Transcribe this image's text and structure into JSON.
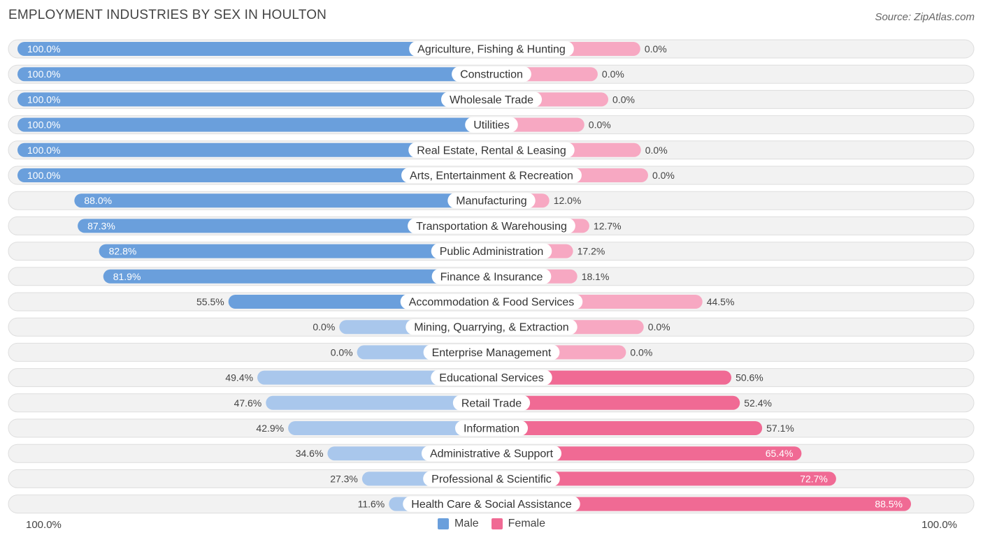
{
  "header": {
    "title": "EMPLOYMENT INDUSTRIES BY SEX IN HOULTON",
    "source": "Source: ZipAtlas.com"
  },
  "axis": {
    "left_label": "100.0%",
    "right_label": "100.0%"
  },
  "legend": {
    "male_label": "Male",
    "female_label": "Female"
  },
  "colors": {
    "male_strong": "#6a9fdc",
    "male_light": "#a9c7ec",
    "female_strong": "#f06a94",
    "female_light": "#f7a8c2"
  },
  "chart_data": {
    "type": "bar",
    "orientation": "horizontal-diverging",
    "title": "EMPLOYMENT INDUSTRIES BY SEX IN HOULTON",
    "xlim": [
      -100,
      100
    ],
    "categories": [
      "Agriculture, Fishing & Hunting",
      "Construction",
      "Wholesale Trade",
      "Utilities",
      "Real Estate, Rental & Leasing",
      "Arts, Entertainment & Recreation",
      "Manufacturing",
      "Transportation & Warehousing",
      "Public Administration",
      "Finance & Insurance",
      "Accommodation & Food Services",
      "Mining, Quarrying, & Extraction",
      "Enterprise Management",
      "Educational Services",
      "Retail Trade",
      "Information",
      "Administrative & Support",
      "Professional & Scientific",
      "Health Care & Social Assistance"
    ],
    "series": [
      {
        "name": "Male",
        "values": [
          100.0,
          100.0,
          100.0,
          100.0,
          100.0,
          100.0,
          88.0,
          87.3,
          82.8,
          81.9,
          55.5,
          0.0,
          0.0,
          49.4,
          47.6,
          42.9,
          34.6,
          27.3,
          11.6
        ],
        "labels": [
          "100.0%",
          "100.0%",
          "100.0%",
          "100.0%",
          "100.0%",
          "100.0%",
          "88.0%",
          "87.3%",
          "82.8%",
          "81.9%",
          "55.5%",
          "0.0%",
          "0.0%",
          "49.4%",
          "47.6%",
          "42.9%",
          "34.6%",
          "27.3%",
          "11.6%"
        ]
      },
      {
        "name": "Female",
        "values": [
          0.0,
          0.0,
          0.0,
          0.0,
          0.0,
          0.0,
          12.0,
          12.7,
          17.2,
          18.1,
          44.5,
          0.0,
          0.0,
          50.6,
          52.4,
          57.1,
          65.4,
          72.7,
          88.5
        ],
        "labels": [
          "0.0%",
          "0.0%",
          "0.0%",
          "0.0%",
          "0.0%",
          "0.0%",
          "12.0%",
          "12.7%",
          "17.2%",
          "18.1%",
          "44.5%",
          "0.0%",
          "0.0%",
          "50.6%",
          "52.4%",
          "57.1%",
          "65.4%",
          "72.7%",
          "88.5%"
        ]
      }
    ]
  }
}
